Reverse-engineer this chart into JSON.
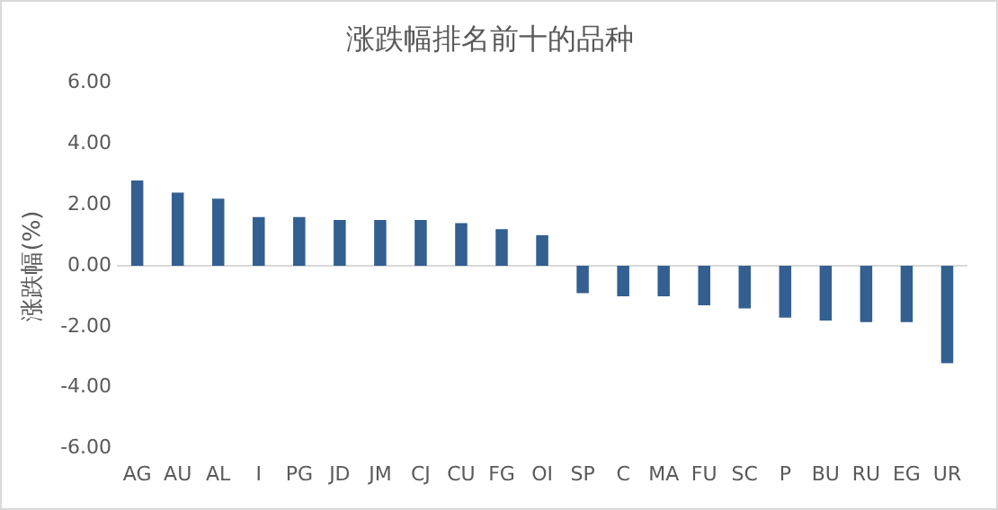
{
  "chart_data": {
    "type": "bar",
    "title": "涨跌幅排名前十的品种",
    "ylabel": "涨跌幅(%)",
    "categories": [
      "AG",
      "AU",
      "AL",
      "I",
      "PG",
      "JD",
      "JM",
      "CJ",
      "CU",
      "FG",
      "OI",
      "SP",
      "C",
      "MA",
      "FU",
      "SC",
      "P",
      "BU",
      "RU",
      "EG",
      "UR"
    ],
    "values": [
      2.8,
      2.4,
      2.2,
      1.6,
      1.6,
      1.5,
      1.5,
      1.5,
      1.4,
      1.2,
      1.0,
      -0.9,
      -1.0,
      -1.0,
      -1.3,
      -1.4,
      -1.7,
      -1.8,
      -1.85,
      -1.85,
      -3.2
    ],
    "color": "#335f91",
    "ylim": [
      -6,
      6
    ],
    "yticks": [
      {
        "value": -6,
        "label": "-6.00"
      },
      {
        "value": -4,
        "label": "-4.00"
      },
      {
        "value": -2,
        "label": "-2.00"
      },
      {
        "value": 0,
        "label": "0.00"
      },
      {
        "value": 2,
        "label": "2.00"
      },
      {
        "value": 4,
        "label": "4.00"
      },
      {
        "value": 6,
        "label": "6.00"
      }
    ],
    "ref_lines": [
      {
        "axis": "y",
        "value": 0,
        "color": "#d9d9d9"
      }
    ],
    "grid": false,
    "legend": false
  }
}
